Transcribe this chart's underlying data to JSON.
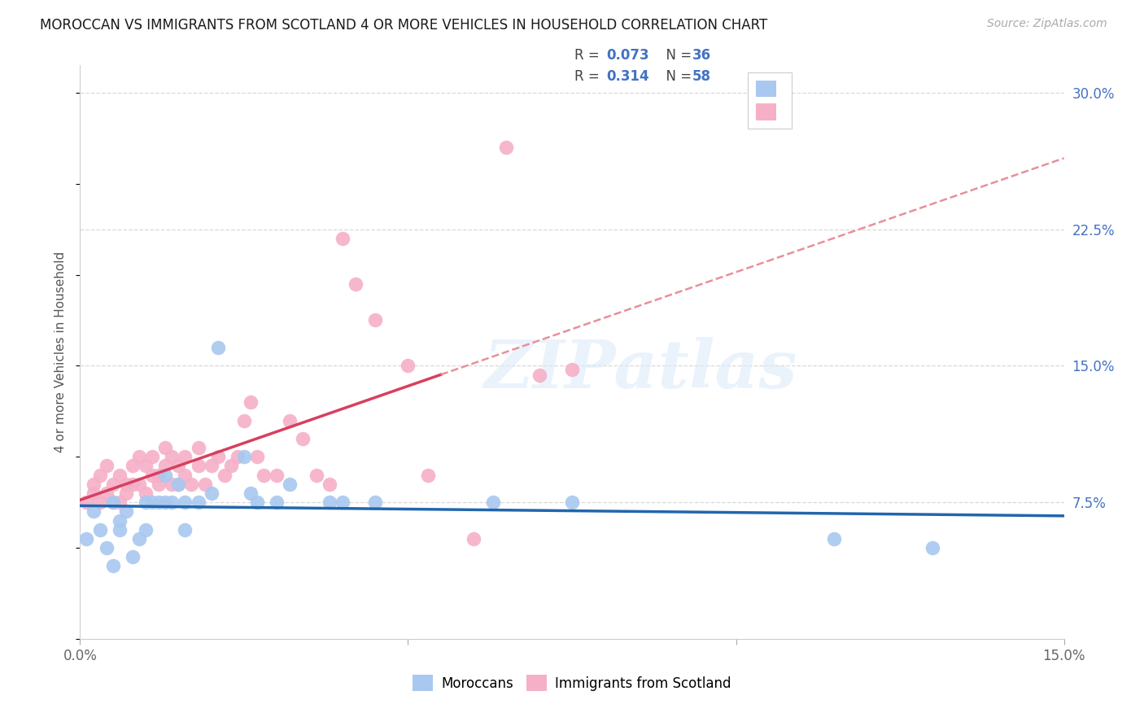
{
  "title": "MOROCCAN VS IMMIGRANTS FROM SCOTLAND 4 OR MORE VEHICLES IN HOUSEHOLD CORRELATION CHART",
  "source": "Source: ZipAtlas.com",
  "ylabel": "4 or more Vehicles in Household",
  "xlim": [
    0.0,
    0.15
  ],
  "ylim": [
    0.0,
    0.315
  ],
  "yticks_right": [
    0.075,
    0.15,
    0.225,
    0.3
  ],
  "ytick_labels_right": [
    "7.5%",
    "15.0%",
    "22.5%",
    "30.0%"
  ],
  "xticks": [
    0.0,
    0.05,
    0.1,
    0.15
  ],
  "xtick_labels": [
    "0.0%",
    "",
    "",
    "15.0%"
  ],
  "moroccan_color": "#a8c8f0",
  "scotland_color": "#f5b0c8",
  "moroccan_line_color": "#2166ac",
  "scotland_line_color": "#d64060",
  "scotland_dash_color": "#e8909a",
  "R_moroccan": 0.073,
  "N_moroccan": 36,
  "R_scotland": 0.314,
  "N_scotland": 58,
  "watermark": "ZIPatlas",
  "background_color": "#ffffff",
  "grid_color": "#d8d8d8",
  "moroccan_x": [
    0.001,
    0.002,
    0.003,
    0.004,
    0.005,
    0.005,
    0.006,
    0.006,
    0.007,
    0.008,
    0.009,
    0.01,
    0.01,
    0.011,
    0.012,
    0.013,
    0.013,
    0.014,
    0.015,
    0.016,
    0.016,
    0.018,
    0.02,
    0.021,
    0.025,
    0.026,
    0.027,
    0.03,
    0.032,
    0.038,
    0.04,
    0.045,
    0.063,
    0.075,
    0.115,
    0.13
  ],
  "moroccan_y": [
    0.055,
    0.07,
    0.06,
    0.05,
    0.075,
    0.04,
    0.065,
    0.06,
    0.07,
    0.045,
    0.055,
    0.075,
    0.06,
    0.075,
    0.075,
    0.09,
    0.075,
    0.075,
    0.085,
    0.075,
    0.06,
    0.075,
    0.08,
    0.16,
    0.1,
    0.08,
    0.075,
    0.075,
    0.085,
    0.075,
    0.075,
    0.075,
    0.075,
    0.075,
    0.055,
    0.05
  ],
  "scotland_x": [
    0.001,
    0.002,
    0.002,
    0.003,
    0.003,
    0.004,
    0.004,
    0.005,
    0.005,
    0.006,
    0.006,
    0.007,
    0.007,
    0.008,
    0.008,
    0.009,
    0.009,
    0.01,
    0.01,
    0.011,
    0.011,
    0.012,
    0.012,
    0.013,
    0.013,
    0.014,
    0.014,
    0.015,
    0.015,
    0.016,
    0.016,
    0.017,
    0.018,
    0.018,
    0.019,
    0.02,
    0.021,
    0.022,
    0.023,
    0.024,
    0.025,
    0.026,
    0.027,
    0.028,
    0.03,
    0.032,
    0.034,
    0.036,
    0.038,
    0.04,
    0.042,
    0.045,
    0.05,
    0.053,
    0.06,
    0.065,
    0.07,
    0.075
  ],
  "scotland_y": [
    0.075,
    0.08,
    0.085,
    0.075,
    0.09,
    0.08,
    0.095,
    0.075,
    0.085,
    0.075,
    0.09,
    0.08,
    0.085,
    0.085,
    0.095,
    0.1,
    0.085,
    0.08,
    0.095,
    0.1,
    0.09,
    0.09,
    0.085,
    0.095,
    0.105,
    0.085,
    0.1,
    0.095,
    0.085,
    0.09,
    0.1,
    0.085,
    0.095,
    0.105,
    0.085,
    0.095,
    0.1,
    0.09,
    0.095,
    0.1,
    0.12,
    0.13,
    0.1,
    0.09,
    0.09,
    0.12,
    0.11,
    0.09,
    0.085,
    0.22,
    0.195,
    0.175,
    0.15,
    0.09,
    0.055,
    0.27,
    0.145,
    0.148
  ]
}
